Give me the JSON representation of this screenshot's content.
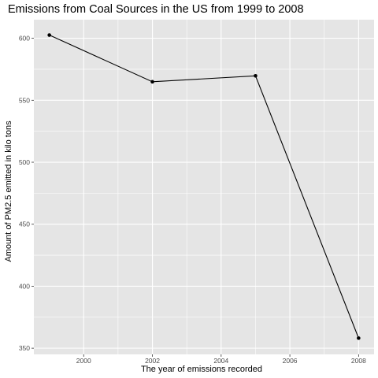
{
  "chart_data": {
    "type": "line",
    "title": "Emissions from Coal Sources in the US from 1999 to 2008",
    "xlabel": "The year of emissions recorded",
    "ylabel": "Amount of PM2.5 emitted in kilo tons",
    "x": [
      1999,
      2002,
      2005,
      2008
    ],
    "series": [
      {
        "values": [
          602.6,
          564.9,
          569.7,
          358.1
        ]
      }
    ],
    "xlim": [
      1998.55,
      2008.45
    ],
    "ylim": [
      345,
      615
    ],
    "x_ticks": [
      2000,
      2002,
      2004,
      2006,
      2008
    ],
    "y_ticks": [
      350,
      400,
      450,
      500,
      550,
      600
    ],
    "x_tick_labels": [
      "2000",
      "2002",
      "2004",
      "2006",
      "2008"
    ],
    "y_tick_labels": [
      "350",
      "400",
      "450",
      "500",
      "550",
      "600"
    ],
    "grid": true,
    "panel_background": "#e5e5e5",
    "grid_color": "#ffffff",
    "line_color": "#000000",
    "point_color": "#000000"
  }
}
